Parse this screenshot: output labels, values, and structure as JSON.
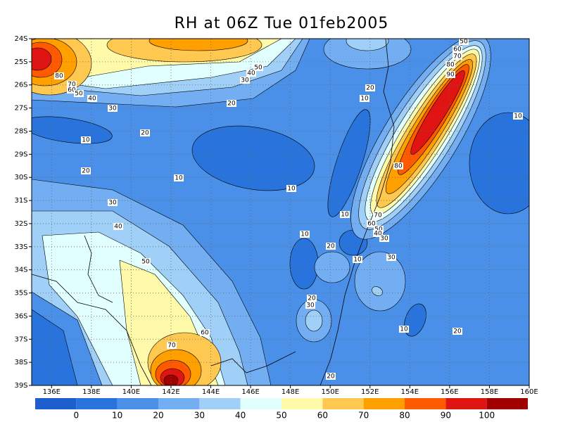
{
  "chart_data": {
    "type": "contour",
    "title": "RH at 06Z Tue 01feb2005",
    "xlim": [
      135,
      160
    ],
    "xticks": [
      {
        "value": 136,
        "label": "136E"
      },
      {
        "value": 138,
        "label": "138E"
      },
      {
        "value": 140,
        "label": "140E"
      },
      {
        "value": 142,
        "label": "142E"
      },
      {
        "value": 144,
        "label": "144E"
      },
      {
        "value": 146,
        "label": "146E"
      },
      {
        "value": 148,
        "label": "148E"
      },
      {
        "value": 150,
        "label": "150E"
      },
      {
        "value": 152,
        "label": "152E"
      },
      {
        "value": 154,
        "label": "154E"
      },
      {
        "value": 156,
        "label": "156E"
      },
      {
        "value": 158,
        "label": "158E"
      },
      {
        "value": 160,
        "label": "160E"
      }
    ],
    "ylim": [
      -39,
      -24
    ],
    "yticks": [
      {
        "value": -24,
        "label": "24S"
      },
      {
        "value": -25,
        "label": "25S"
      },
      {
        "value": -26,
        "label": "26S"
      },
      {
        "value": -27,
        "label": "27S"
      },
      {
        "value": -28,
        "label": "28S"
      },
      {
        "value": -29,
        "label": "29S"
      },
      {
        "value": -30,
        "label": "30S"
      },
      {
        "value": -31,
        "label": "31S"
      },
      {
        "value": -32,
        "label": "32S"
      },
      {
        "value": -33,
        "label": "33S"
      },
      {
        "value": -34,
        "label": "34S"
      },
      {
        "value": -35,
        "label": "35S"
      },
      {
        "value": -36,
        "label": "36S"
      },
      {
        "value": -37,
        "label": "37S"
      },
      {
        "value": -38,
        "label": "38S"
      },
      {
        "value": -39,
        "label": "39S"
      }
    ],
    "grid": true,
    "colorbar": {
      "levels": [
        0,
        10,
        20,
        30,
        40,
        50,
        60,
        70,
        80,
        90,
        100
      ],
      "colors": [
        "#1e5fd0",
        "#2874dc",
        "#4a90e8",
        "#74aef2",
        "#a0cff8",
        "#e1ffff",
        "#fffaaa",
        "#ffc850",
        "#ffa000",
        "#ff5a00",
        "#e11414",
        "#a00000"
      ]
    },
    "contour_labels": [
      50,
      40,
      30,
      80,
      70,
      60,
      50,
      40,
      30,
      20,
      20,
      10,
      20,
      10,
      10,
      30,
      40,
      50,
      60,
      70,
      20,
      10,
      50,
      60,
      70,
      80,
      90,
      10,
      80,
      10,
      10,
      20,
      70,
      60,
      50,
      40,
      30,
      10,
      30,
      20,
      30,
      10,
      20,
      20
    ]
  }
}
